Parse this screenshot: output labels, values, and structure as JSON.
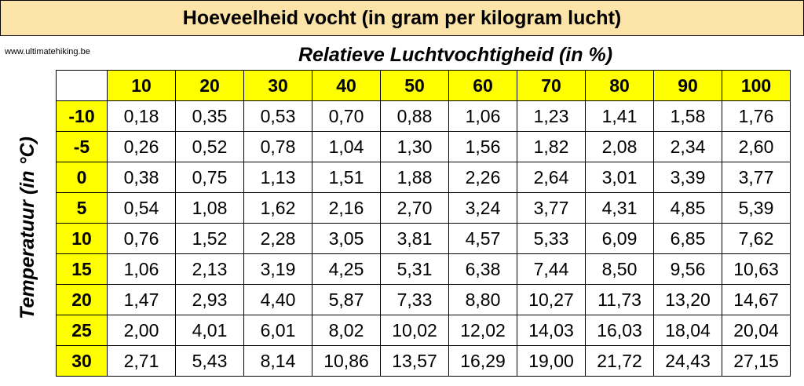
{
  "title": "Hoeveelheid vocht (in gram per kilogram lucht)",
  "source": "www.ultimatehiking.be",
  "column_axis_label": "Relatieve Luchtvochtigheid (in %)",
  "row_axis_label": "Temperatuur (in °C)",
  "columns": [
    "10",
    "20",
    "30",
    "40",
    "50",
    "60",
    "70",
    "80",
    "90",
    "100"
  ],
  "rows": [
    {
      "temp": "-10",
      "values": [
        "0,18",
        "0,35",
        "0,53",
        "0,70",
        "0,88",
        "1,06",
        "1,23",
        "1,41",
        "1,58",
        "1,76"
      ]
    },
    {
      "temp": "-5",
      "values": [
        "0,26",
        "0,52",
        "0,78",
        "1,04",
        "1,30",
        "1,56",
        "1,82",
        "2,08",
        "2,34",
        "2,60"
      ]
    },
    {
      "temp": "0",
      "values": [
        "0,38",
        "0,75",
        "1,13",
        "1,51",
        "1,88",
        "2,26",
        "2,64",
        "3,01",
        "3,39",
        "3,77"
      ]
    },
    {
      "temp": "5",
      "values": [
        "0,54",
        "1,08",
        "1,62",
        "2,16",
        "2,70",
        "3,24",
        "3,77",
        "4,31",
        "4,85",
        "5,39"
      ]
    },
    {
      "temp": "10",
      "values": [
        "0,76",
        "1,52",
        "2,28",
        "3,05",
        "3,81",
        "4,57",
        "5,33",
        "6,09",
        "6,85",
        "7,62"
      ]
    },
    {
      "temp": "15",
      "values": [
        "1,06",
        "2,13",
        "3,19",
        "4,25",
        "5,31",
        "6,38",
        "7,44",
        "8,50",
        "9,56",
        "10,63"
      ]
    },
    {
      "temp": "20",
      "values": [
        "1,47",
        "2,93",
        "4,40",
        "5,87",
        "7,33",
        "8,80",
        "10,27",
        "11,73",
        "13,20",
        "14,67"
      ]
    },
    {
      "temp": "25",
      "values": [
        "2,00",
        "4,01",
        "6,01",
        "8,02",
        "10,02",
        "12,02",
        "14,03",
        "16,03",
        "18,04",
        "20,04"
      ]
    },
    {
      "temp": "30",
      "values": [
        "2,71",
        "5,43",
        "8,14",
        "10,86",
        "13,57",
        "16,29",
        "19,00",
        "21,72",
        "24,43",
        "27,15"
      ]
    }
  ],
  "colors": {
    "title_background": "#fce3a8",
    "header_background": "#ffff00"
  }
}
